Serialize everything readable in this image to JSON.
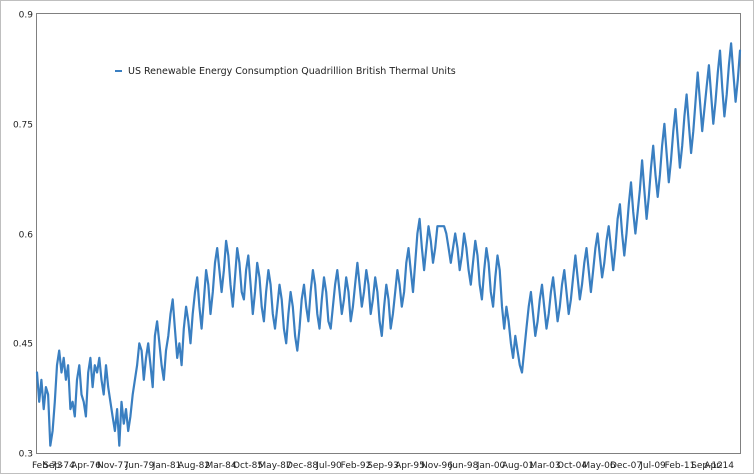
{
  "chart_data": {
    "type": "line",
    "title": "",
    "xlabel": "",
    "ylabel": "",
    "ylim": [
      0.3,
      0.9
    ],
    "y_ticks": [
      0.3,
      0.45,
      0.6,
      0.75,
      0.9
    ],
    "y_tick_labels": [
      "0.3",
      "0.45",
      "0.6",
      "0.75",
      "0.9"
    ],
    "x_tick_labels": [
      "Feb-73",
      "Sep-74",
      "Apr-76",
      "Nov-77",
      "Jun-79",
      "Jan-81",
      "Aug-82",
      "Mar-84",
      "Oct-85",
      "May-87",
      "Dec-88",
      "Jul-90",
      "Feb-92",
      "Sep-93",
      "Apr-95",
      "Nov-96",
      "Jun-98",
      "Jan-00",
      "Aug-01",
      "Mar-03",
      "Oct-04",
      "May-06",
      "Dec-07",
      "Jul-09",
      "Feb-11",
      "Sep-12",
      "Apr-14"
    ],
    "grid": true,
    "legend_position": "top-left",
    "series": [
      {
        "name": "US Renewable Energy Consumption Quadrillion British Thermal Units",
        "color": "#3a7fc1",
        "anchors": [
          [
            "Feb-73",
            0.4
          ],
          [
            "Sep-74",
            0.38
          ],
          [
            "Apr-76",
            0.4
          ],
          [
            "Nov-77",
            0.35
          ],
          [
            "Jun-79",
            0.44
          ],
          [
            "Jan-81",
            0.46
          ],
          [
            "Aug-82",
            0.5
          ],
          [
            "Mar-84",
            0.54
          ],
          [
            "Oct-85",
            0.52
          ],
          [
            "May-87",
            0.49
          ],
          [
            "Dec-88",
            0.5
          ],
          [
            "Jul-90",
            0.52
          ],
          [
            "Feb-92",
            0.51
          ],
          [
            "Sep-93",
            0.52
          ],
          [
            "Apr-95",
            0.53
          ],
          [
            "Nov-96",
            0.58
          ],
          [
            "Jun-98",
            0.56
          ],
          [
            "Jan-00",
            0.53
          ],
          [
            "Aug-01",
            0.47
          ],
          [
            "Mar-03",
            0.5
          ],
          [
            "Oct-04",
            0.51
          ],
          [
            "May-06",
            0.55
          ],
          [
            "Dec-07",
            0.56
          ],
          [
            "Jul-09",
            0.61
          ],
          [
            "Feb-11",
            0.71
          ],
          [
            "Sep-12",
            0.72
          ],
          [
            "Apr-14",
            0.78
          ]
        ],
        "values": [
          0.41,
          0.37,
          0.4,
          0.36,
          0.39,
          0.38,
          0.31,
          0.33,
          0.37,
          0.42,
          0.44,
          0.41,
          0.43,
          0.4,
          0.42,
          0.36,
          0.37,
          0.35,
          0.4,
          0.42,
          0.38,
          0.37,
          0.35,
          0.41,
          0.43,
          0.39,
          0.42,
          0.41,
          0.43,
          0.4,
          0.38,
          0.42,
          0.39,
          0.37,
          0.35,
          0.33,
          0.36,
          0.31,
          0.37,
          0.34,
          0.36,
          0.33,
          0.35,
          0.38,
          0.4,
          0.42,
          0.45,
          0.44,
          0.4,
          0.43,
          0.45,
          0.42,
          0.39,
          0.46,
          0.48,
          0.45,
          0.42,
          0.4,
          0.44,
          0.46,
          0.49,
          0.51,
          0.47,
          0.43,
          0.45,
          0.42,
          0.47,
          0.5,
          0.48,
          0.45,
          0.49,
          0.52,
          0.54,
          0.5,
          0.47,
          0.51,
          0.55,
          0.53,
          0.49,
          0.52,
          0.56,
          0.58,
          0.55,
          0.52,
          0.55,
          0.59,
          0.57,
          0.53,
          0.5,
          0.54,
          0.58,
          0.56,
          0.52,
          0.51,
          0.55,
          0.57,
          0.53,
          0.49,
          0.52,
          0.56,
          0.54,
          0.5,
          0.48,
          0.52,
          0.55,
          0.53,
          0.49,
          0.47,
          0.5,
          0.53,
          0.51,
          0.47,
          0.45,
          0.49,
          0.52,
          0.5,
          0.46,
          0.44,
          0.47,
          0.51,
          0.53,
          0.5,
          0.48,
          0.52,
          0.55,
          0.53,
          0.49,
          0.47,
          0.51,
          0.54,
          0.52,
          0.48,
          0.47,
          0.5,
          0.53,
          0.55,
          0.52,
          0.49,
          0.51,
          0.54,
          0.52,
          0.48,
          0.5,
          0.53,
          0.56,
          0.53,
          0.5,
          0.52,
          0.55,
          0.53,
          0.49,
          0.51,
          0.54,
          0.52,
          0.48,
          0.46,
          0.5,
          0.53,
          0.51,
          0.47,
          0.49,
          0.52,
          0.55,
          0.53,
          0.5,
          0.52,
          0.56,
          0.58,
          0.55,
          0.52,
          0.56,
          0.6,
          0.62,
          0.58,
          0.55,
          0.58,
          0.61,
          0.59,
          0.56,
          0.58,
          0.61,
          0.61,
          0.61,
          0.61,
          0.6,
          0.58,
          0.56,
          0.58,
          0.6,
          0.58,
          0.55,
          0.57,
          0.6,
          0.58,
          0.55,
          0.53,
          0.56,
          0.59,
          0.57,
          0.53,
          0.51,
          0.55,
          0.58,
          0.56,
          0.52,
          0.5,
          0.54,
          0.57,
          0.55,
          0.5,
          0.47,
          0.5,
          0.48,
          0.45,
          0.43,
          0.46,
          0.44,
          0.42,
          0.41,
          0.44,
          0.47,
          0.5,
          0.52,
          0.49,
          0.46,
          0.48,
          0.51,
          0.53,
          0.5,
          0.47,
          0.49,
          0.52,
          0.54,
          0.51,
          0.48,
          0.5,
          0.53,
          0.55,
          0.52,
          0.49,
          0.51,
          0.54,
          0.57,
          0.54,
          0.51,
          0.53,
          0.56,
          0.58,
          0.55,
          0.52,
          0.55,
          0.58,
          0.6,
          0.57,
          0.54,
          0.56,
          0.59,
          0.61,
          0.58,
          0.55,
          0.58,
          0.62,
          0.64,
          0.6,
          0.57,
          0.6,
          0.64,
          0.67,
          0.63,
          0.6,
          0.63,
          0.66,
          0.7,
          0.66,
          0.62,
          0.65,
          0.69,
          0.72,
          0.68,
          0.65,
          0.68,
          0.72,
          0.75,
          0.71,
          0.67,
          0.7,
          0.74,
          0.77,
          0.73,
          0.69,
          0.72,
          0.76,
          0.79,
          0.75,
          0.71,
          0.74,
          0.78,
          0.82,
          0.78,
          0.74,
          0.77,
          0.8,
          0.83,
          0.79,
          0.75,
          0.78,
          0.82,
          0.85,
          0.8,
          0.76,
          0.79,
          0.83,
          0.86,
          0.82,
          0.78,
          0.81,
          0.85
        ]
      }
    ]
  }
}
